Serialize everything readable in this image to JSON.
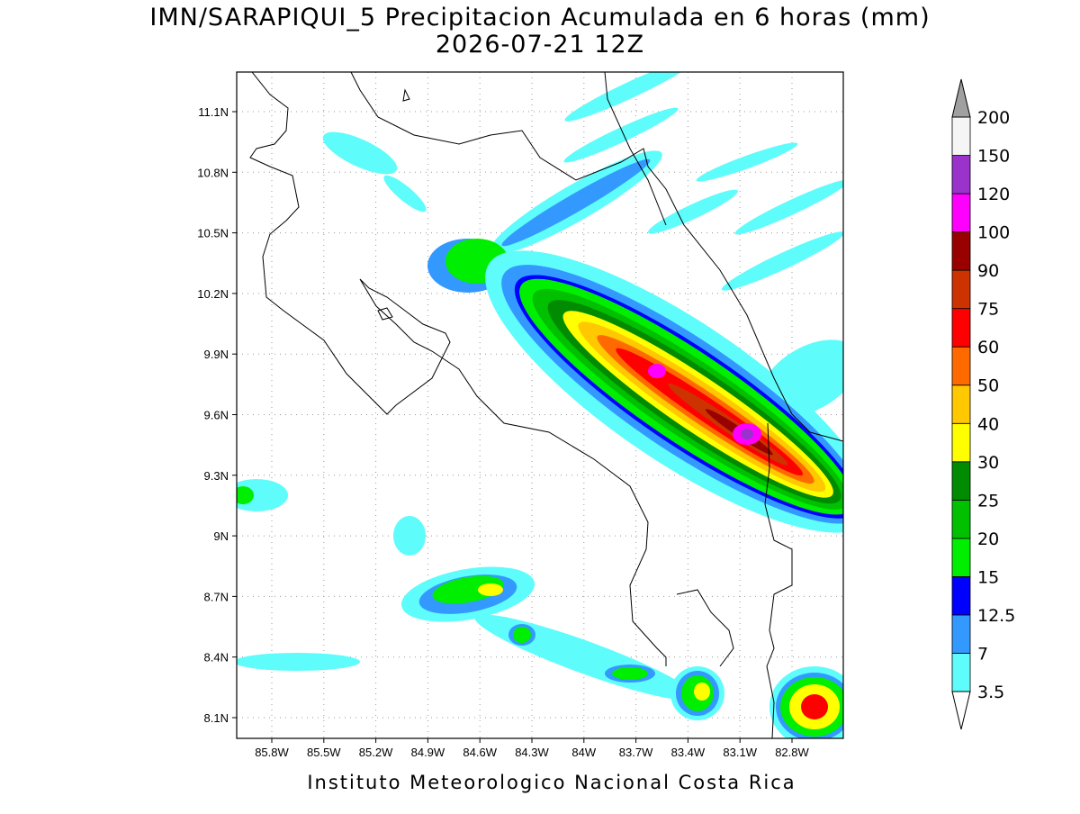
{
  "title": [
    "IMN/SARAPIQUI_5 Precipitacion Acumulada en 6 horas (mm)",
    "2026-07-21 12Z"
  ],
  "lat_labels": [
    "11.1N",
    "10.8N",
    "10.5N",
    "10.2N",
    "9.9N",
    "9.6N",
    "9.3N",
    "9N",
    "8.7N",
    "8.4N",
    "8.1N"
  ],
  "lon_labels": [
    "85.8W",
    "85.5W",
    "85.2W",
    "84.9W",
    "84.6W",
    "84.3W",
    "84W",
    "83.7W",
    "83.4W",
    "83.1W",
    "82.8W"
  ],
  "colorbar": {
    "levels": [
      3.5,
      7,
      12.5,
      15,
      20,
      25,
      30,
      40,
      50,
      60,
      75,
      90,
      100,
      120,
      150,
      200
    ],
    "colors": [
      "#5ffcfc",
      "#3399ff",
      "#0000ff",
      "#00ee00",
      "#00c000",
      "#008b00",
      "#ffff00",
      "#ffc800",
      "#ff6a00",
      "#ff0000",
      "#cc3300",
      "#990000",
      "#ff00ff",
      "#9933cc",
      "#f5f5f5"
    ],
    "under_color": "#ffffff",
    "over_color": "#a0a0a0"
  },
  "footer": "Instituto Meteorologico Nacional Costa Rica"
}
